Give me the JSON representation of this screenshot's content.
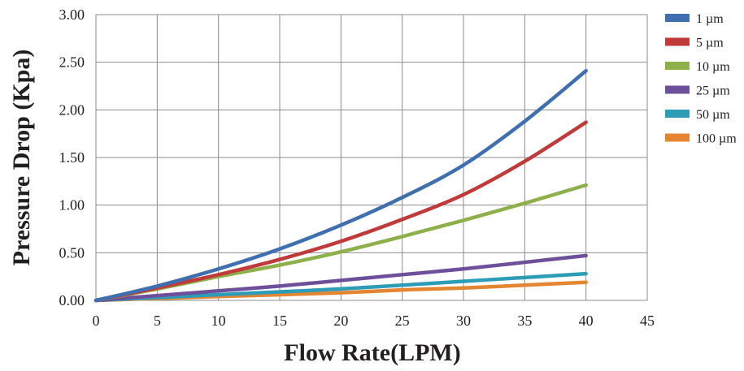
{
  "chart_data": {
    "type": "line",
    "title": "",
    "xlabel": "Flow Rate(LPM)",
    "ylabel": "Pressure Drop (Kpa)",
    "xlim": [
      0,
      45
    ],
    "ylim": [
      0,
      3.0
    ],
    "x_ticks": [
      "0",
      "5",
      "10",
      "15",
      "20",
      "25",
      "30",
      "35",
      "40",
      "45"
    ],
    "y_ticks": [
      "0.00",
      "0.50",
      "1.00",
      "1.50",
      "2.00",
      "2.50",
      "3.00"
    ],
    "grid": true,
    "legend_position": "right",
    "x": [
      0,
      5,
      10,
      15,
      20,
      25,
      30,
      35,
      40
    ],
    "series": [
      {
        "name": "1 µm",
        "color": "#3f6fb0",
        "values": [
          0,
          0.15,
          0.33,
          0.54,
          0.79,
          1.08,
          1.42,
          1.88,
          2.41
        ]
      },
      {
        "name": "5 µm",
        "color": "#c03a3a",
        "values": [
          0,
          0.13,
          0.27,
          0.43,
          0.62,
          0.85,
          1.11,
          1.46,
          1.87
        ]
      },
      {
        "name": "10 µm",
        "color": "#8db04b",
        "values": [
          0,
          0.12,
          0.25,
          0.37,
          0.51,
          0.67,
          0.84,
          1.02,
          1.21
        ]
      },
      {
        "name": "25 µm",
        "color": "#6e4f9b",
        "values": [
          0,
          0.05,
          0.1,
          0.15,
          0.21,
          0.27,
          0.33,
          0.4,
          0.47
        ]
      },
      {
        "name": "50 µm",
        "color": "#2d9db7",
        "values": [
          0,
          0.03,
          0.06,
          0.09,
          0.12,
          0.16,
          0.2,
          0.24,
          0.28
        ]
      },
      {
        "name": "100 µm",
        "color": "#e48531",
        "values": [
          0,
          0.02,
          0.04,
          0.06,
          0.08,
          0.11,
          0.13,
          0.16,
          0.19
        ]
      }
    ]
  }
}
